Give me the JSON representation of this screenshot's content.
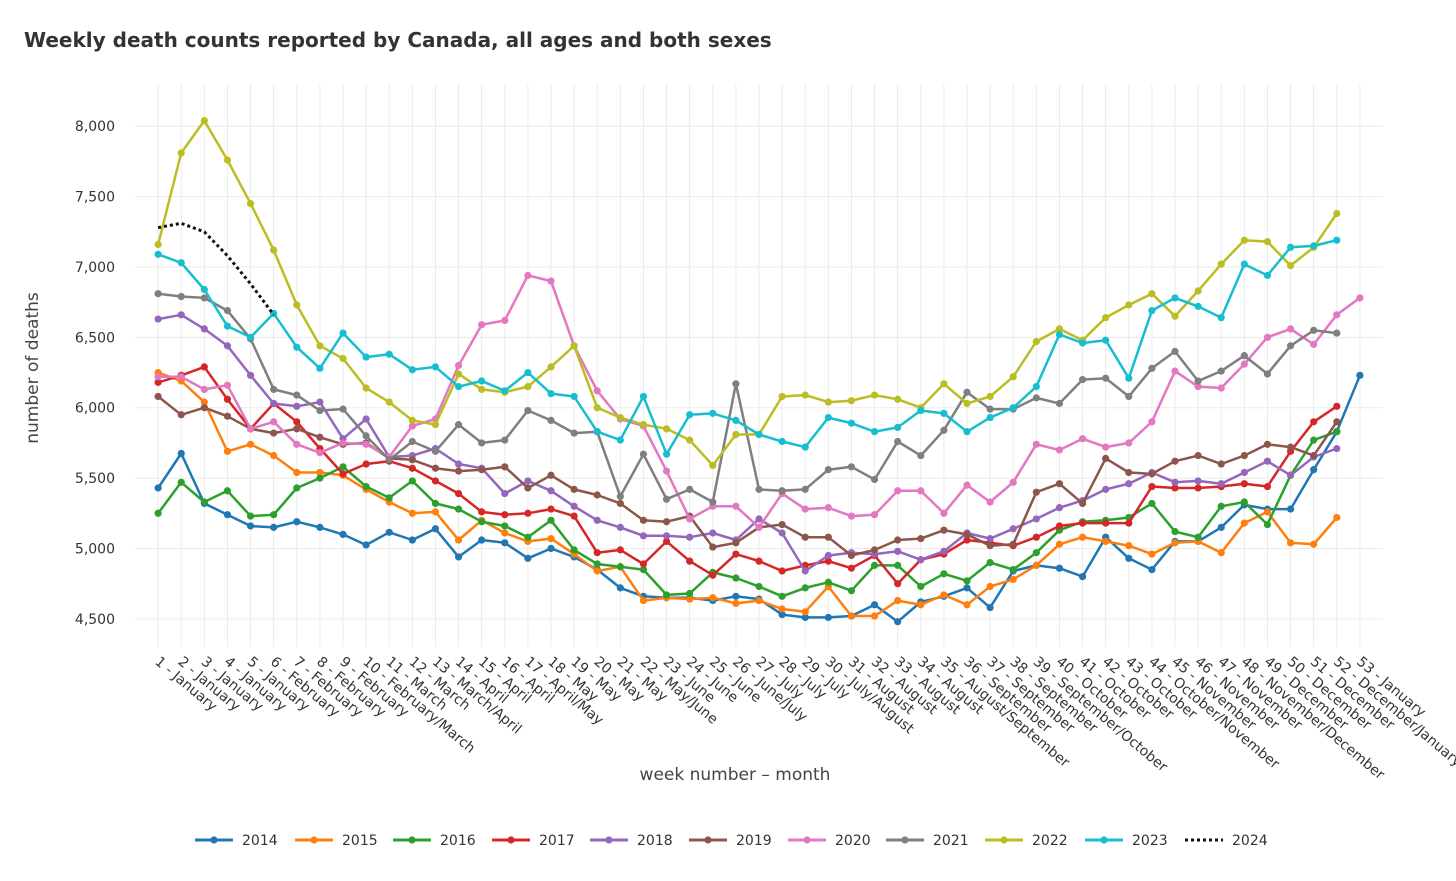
{
  "chart_data": {
    "type": "line",
    "title": "Weekly death counts reported by Canada, all ages and both sexes",
    "xlabel": "week number – month",
    "ylabel": "number of deaths",
    "ylim": [
      4300,
      8300
    ],
    "y_ticks": [
      4500,
      5000,
      5500,
      6000,
      6500,
      7000,
      7500,
      8000
    ],
    "y_tick_labels": [
      "4,500",
      "5,000",
      "5,500",
      "6,000",
      "6,500",
      "7,000",
      "7,500",
      "8,000"
    ],
    "grid": true,
    "legend_position": "bottom",
    "x": [
      1,
      2,
      3,
      4,
      5,
      6,
      7,
      8,
      9,
      10,
      11,
      12,
      13,
      14,
      15,
      16,
      17,
      18,
      19,
      20,
      21,
      22,
      23,
      24,
      25,
      26,
      27,
      28,
      29,
      30,
      31,
      32,
      33,
      34,
      35,
      36,
      37,
      38,
      39,
      40,
      41,
      42,
      43,
      44,
      45,
      46,
      47,
      48,
      49,
      50,
      51,
      52,
      53
    ],
    "categories": [
      "1 - January",
      "2 - January",
      "3 - January",
      "4 - January",
      "5 - January",
      "6 - February",
      "7 - February",
      "8 - February",
      "9 - February",
      "10 - February/March",
      "11 - March",
      "12 - March",
      "13 - March/April",
      "14 - April",
      "15 - April",
      "16 - April",
      "17 - April/May",
      "18 - May",
      "19 - May",
      "20 - May",
      "21 - May",
      "22 - May/June",
      "23 - June",
      "24 - June",
      "25 - June",
      "26 - June/July",
      "27 - July",
      "28 - July",
      "29 - July",
      "30 - July/August",
      "31 - August",
      "32 - August",
      "33 - August",
      "34 - August",
      "35 - August/September",
      "36 - September",
      "37 - September",
      "38 - September",
      "39 - September/October",
      "40 - October",
      "41 - October",
      "42 - October",
      "43 - October",
      "44 - October/November",
      "45 - November",
      "46 - November",
      "47 - November",
      "48 - November/December",
      "49 - December",
      "50 - December",
      "51 - December",
      "52 - December/January",
      "53 - January"
    ],
    "series": [
      {
        "name": "2014",
        "color": "#1f77b4",
        "dash": false,
        "values": [
          5430,
          5675,
          5320,
          5240,
          5160,
          5150,
          5190,
          5150,
          5100,
          5025,
          5115,
          5060,
          5140,
          4940,
          5060,
          5040,
          4930,
          5000,
          4940,
          4850,
          4720,
          4660,
          4650,
          4650,
          4630,
          4660,
          4640,
          4530,
          4510,
          4510,
          4520,
          4600,
          4480,
          4620,
          4660,
          4720,
          4580,
          4840,
          4880,
          4860,
          4800,
          5080,
          4930,
          4850,
          5050,
          5050,
          5150,
          5310,
          5280,
          5280,
          5560,
          5830,
          6230
        ]
      },
      {
        "name": "2015",
        "color": "#ff7f0e",
        "dash": false,
        "values": [
          6250,
          6190,
          6040,
          5690,
          5740,
          5660,
          5540,
          5540,
          5520,
          5420,
          5330,
          5250,
          5260,
          5060,
          5200,
          5110,
          5050,
          5070,
          4960,
          4840,
          4870,
          4630,
          4650,
          4640,
          4650,
          4610,
          4630,
          4570,
          4550,
          4730,
          4520,
          4520,
          4630,
          4600,
          4670,
          4600,
          4730,
          4780,
          4880,
          5030,
          5080,
          5050,
          5020,
          4960,
          5040,
          5050,
          4970,
          5180,
          5260,
          5040,
          5030,
          5220,
          null
        ]
      },
      {
        "name": "2016",
        "color": "#2ca02c",
        "dash": false,
        "values": [
          5250,
          5470,
          5330,
          5410,
          5230,
          5240,
          5430,
          5500,
          5580,
          5440,
          5360,
          5480,
          5320,
          5280,
          5190,
          5160,
          5080,
          5200,
          4990,
          4890,
          4870,
          4850,
          4670,
          4680,
          4830,
          4790,
          4730,
          4660,
          4720,
          4760,
          4700,
          4880,
          4880,
          4730,
          4820,
          4770,
          4900,
          4850,
          4970,
          5130,
          5190,
          5200,
          5220,
          5320,
          5120,
          5080,
          5300,
          5330,
          5170,
          5520,
          5770,
          5830,
          null
        ]
      },
      {
        "name": "2017",
        "color": "#d62728",
        "dash": false,
        "values": [
          6180,
          6230,
          6290,
          6060,
          5850,
          6030,
          5900,
          5710,
          5530,
          5600,
          5620,
          5570,
          5480,
          5390,
          5260,
          5240,
          5250,
          5280,
          5230,
          4970,
          4990,
          4890,
          5050,
          4910,
          4810,
          4960,
          4910,
          4840,
          4880,
          4910,
          4860,
          4950,
          4750,
          4920,
          4960,
          5060,
          5040,
          5020,
          5080,
          5160,
          5180,
          5180,
          5180,
          5440,
          5430,
          5430,
          5440,
          5460,
          5440,
          5690,
          5900,
          6010,
          null
        ]
      },
      {
        "name": "2018",
        "color": "#9467bd",
        "dash": false,
        "values": [
          6630,
          6660,
          6560,
          6440,
          6230,
          6030,
          6010,
          6040,
          5780,
          5920,
          5650,
          5660,
          5710,
          5600,
          5570,
          5390,
          5480,
          5410,
          5300,
          5200,
          5150,
          5090,
          5090,
          5080,
          5110,
          5060,
          5210,
          5110,
          4840,
          4950,
          4970,
          4960,
          4980,
          4920,
          4980,
          5110,
          5070,
          5140,
          5210,
          5290,
          5340,
          5420,
          5460,
          5540,
          5470,
          5480,
          5460,
          5540,
          5620,
          5520,
          5650,
          5710,
          null
        ]
      },
      {
        "name": "2019",
        "color": "#8c564b",
        "dash": false,
        "values": [
          6080,
          5950,
          6000,
          5940,
          5850,
          5820,
          5850,
          5790,
          5740,
          5750,
          5640,
          5630,
          5570,
          5550,
          5560,
          5580,
          5430,
          5520,
          5420,
          5380,
          5320,
          5200,
          5190,
          5230,
          5010,
          5040,
          5150,
          5170,
          5080,
          5080,
          4950,
          4990,
          5060,
          5070,
          5130,
          5100,
          5020,
          5030,
          5400,
          5460,
          5320,
          5640,
          5540,
          5530,
          5620,
          5660,
          5600,
          5660,
          5740,
          5720,
          5660,
          5900,
          null
        ]
      },
      {
        "name": "2020",
        "color": "#e377c2",
        "dash": false,
        "values": [
          6220,
          6220,
          6130,
          6160,
          5850,
          5900,
          5740,
          5680,
          5750,
          5740,
          5650,
          5870,
          5920,
          6300,
          6590,
          6620,
          6940,
          6900,
          6440,
          6120,
          5920,
          5870,
          5550,
          5210,
          5300,
          5300,
          5150,
          5390,
          5280,
          5290,
          5230,
          5240,
          5410,
          5410,
          5250,
          5450,
          5330,
          5470,
          5740,
          5700,
          5780,
          5720,
          5750,
          5900,
          6260,
          6150,
          6140,
          6310,
          6500,
          6560,
          6450,
          6660,
          6780
        ]
      },
      {
        "name": "2021",
        "color": "#7f7f7f",
        "dash": false,
        "values": [
          6810,
          6790,
          6780,
          6690,
          6490,
          6130,
          6090,
          5980,
          5990,
          5800,
          5630,
          5760,
          5690,
          5880,
          5750,
          5770,
          5980,
          5910,
          5820,
          5830,
          5370,
          5670,
          5350,
          5420,
          5330,
          6170,
          5420,
          5410,
          5420,
          5560,
          5580,
          5490,
          5760,
          5660,
          5840,
          6110,
          5990,
          5990,
          6070,
          6030,
          6200,
          6210,
          6080,
          6280,
          6400,
          6190,
          6260,
          6370,
          6240,
          6440,
          6550,
          6530,
          null
        ]
      },
      {
        "name": "2022",
        "color": "#bcbd22",
        "dash": false,
        "values": [
          7160,
          7810,
          8040,
          7760,
          7450,
          7120,
          6730,
          6440,
          6350,
          6140,
          6040,
          5910,
          5880,
          6240,
          6130,
          6110,
          6150,
          6290,
          6440,
          6000,
          5930,
          5880,
          5850,
          5770,
          5590,
          5810,
          5810,
          6080,
          6090,
          6040,
          6050,
          6090,
          6060,
          6000,
          6170,
          6030,
          6080,
          6220,
          6470,
          6560,
          6480,
          6640,
          6730,
          6810,
          6650,
          6830,
          7020,
          7190,
          7180,
          7010,
          7140,
          7380,
          null
        ]
      },
      {
        "name": "2023",
        "color": "#17becf",
        "dash": false,
        "values": [
          7090,
          7030,
          6840,
          6580,
          6500,
          6670,
          6430,
          6280,
          6530,
          6360,
          6380,
          6270,
          6290,
          6150,
          6190,
          6120,
          6250,
          6100,
          6080,
          5830,
          5770,
          6080,
          5670,
          5950,
          5960,
          5910,
          5810,
          5760,
          5720,
          5930,
          5890,
          5830,
          5860,
          5980,
          5960,
          5830,
          5930,
          6000,
          6150,
          6520,
          6460,
          6480,
          6210,
          6690,
          6780,
          6720,
          6640,
          7020,
          6940,
          7140,
          7150,
          7190,
          null
        ]
      },
      {
        "name": "2024",
        "color": "#111111",
        "dash": true,
        "values": [
          7280,
          7310,
          7250,
          7080,
          6880,
          6660,
          null,
          null,
          null,
          null,
          null,
          null,
          null,
          null,
          null,
          null,
          null,
          null,
          null,
          null,
          null,
          null,
          null,
          null,
          null,
          null,
          null,
          null,
          null,
          null,
          null,
          null,
          null,
          null,
          null,
          null,
          null,
          null,
          null,
          null,
          null,
          null,
          null,
          null,
          null,
          null,
          null,
          null,
          null,
          null,
          null,
          null,
          null
        ]
      }
    ]
  }
}
